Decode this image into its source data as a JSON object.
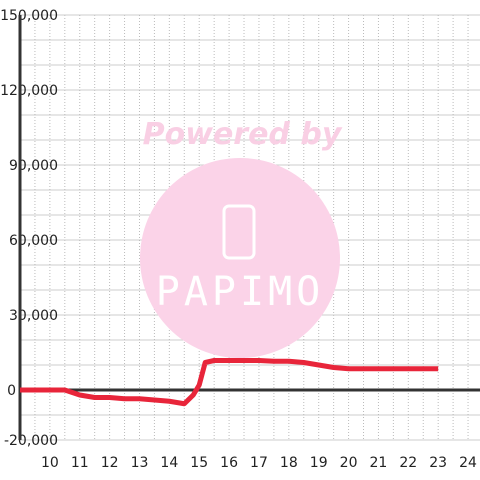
{
  "chart_data": {
    "type": "line",
    "watermark": {
      "top": "Powered by",
      "brand": "PAPIMO"
    },
    "x": [
      9,
      10,
      10.5,
      11,
      11.5,
      12,
      12.5,
      13,
      13.5,
      14,
      14.5,
      14.8,
      15,
      15.2,
      15.5,
      16,
      17,
      17.5,
      18,
      18.5,
      19,
      19.5,
      20,
      21,
      22,
      23
    ],
    "series": [
      {
        "color": "#e8253a",
        "values": [
          0,
          0,
          0,
          -2000,
          -3000,
          -3000,
          -3500,
          -3500,
          -4000,
          -4500,
          -5500,
          -2000,
          2000,
          11000,
          11800,
          11800,
          11800,
          11500,
          11500,
          11000,
          10000,
          9000,
          8500,
          8500,
          8500,
          8500
        ]
      }
    ],
    "xlim": [
      9,
      24.4
    ],
    "xticks": [
      10,
      11,
      12,
      13,
      14,
      15,
      16,
      17,
      18,
      19,
      20,
      21,
      22,
      23,
      24
    ],
    "x_minor_ticks": [
      9.5,
      10.5,
      11.5,
      12.5,
      13.5,
      14.5,
      15.5,
      16.5,
      17.5,
      18.5,
      19.5,
      20.5,
      21.5,
      22.5,
      23.5
    ],
    "ylim": [
      -20000,
      150000
    ],
    "yticks": [
      {
        "value": -20000,
        "label": "-20,000"
      },
      0,
      {
        "value": 30000,
        "label": "30,000"
      },
      {
        "value": 60000,
        "label": "60,000"
      },
      {
        "value": 90000,
        "label": "90,000"
      },
      {
        "value": 120000,
        "label": "120,000"
      },
      {
        "value": 150000,
        "label": "150,000"
      }
    ],
    "y_minor_ticks": [
      -10000,
      10000,
      20000,
      40000,
      50000,
      70000,
      80000,
      100000,
      110000,
      130000,
      140000
    ],
    "grid": true
  }
}
